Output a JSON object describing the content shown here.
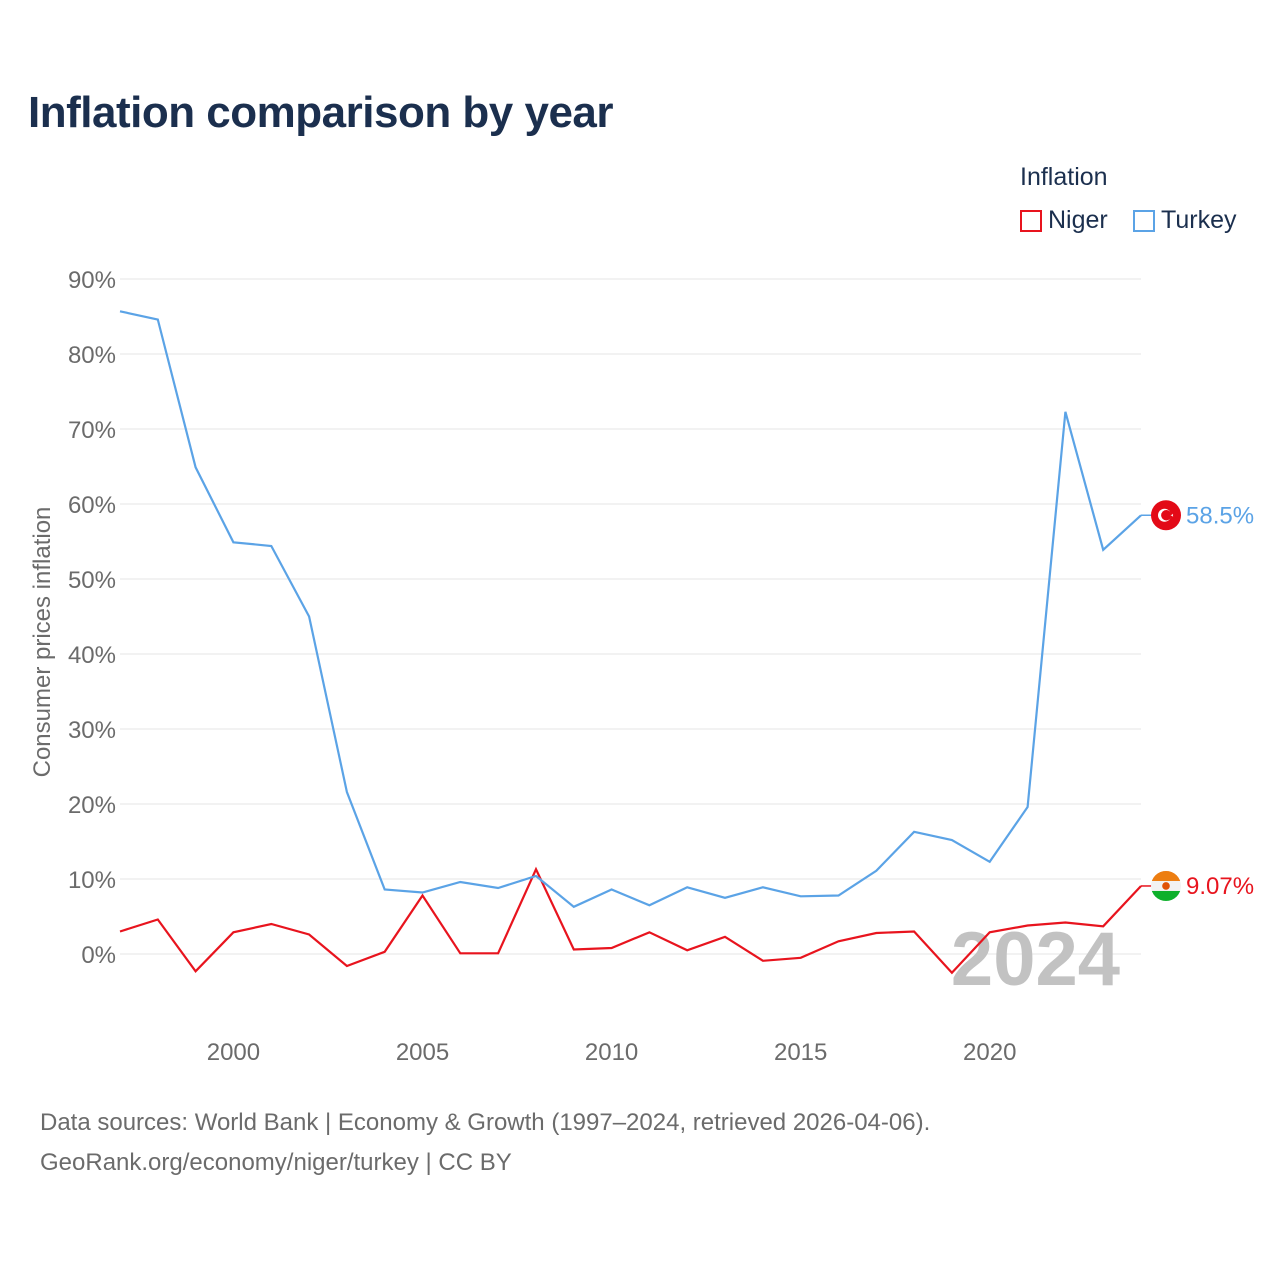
{
  "chart_data": {
    "type": "line",
    "title": "Inflation comparison by year",
    "ylabel": "Consumer prices inflation",
    "xlabel": "",
    "legend_title": "Inflation",
    "x": [
      1997,
      1998,
      1999,
      2000,
      2001,
      2002,
      2003,
      2004,
      2005,
      2006,
      2007,
      2008,
      2009,
      2010,
      2011,
      2012,
      2013,
      2014,
      2015,
      2016,
      2017,
      2018,
      2019,
      2020,
      2021,
      2022,
      2023,
      2024
    ],
    "xlim": [
      1997,
      2024
    ],
    "ylim": [
      -10,
      90
    ],
    "x_ticks": [
      2000,
      2005,
      2010,
      2015,
      2020
    ],
    "y_ticks": [
      0,
      10,
      20,
      30,
      40,
      50,
      60,
      70,
      80,
      90
    ],
    "y_tick_labels": [
      "0%",
      "10%",
      "20%",
      "30%",
      "40%",
      "50%",
      "60%",
      "70%",
      "80%",
      "90%"
    ],
    "grid": true,
    "legend_position": "top-right",
    "series": [
      {
        "name": "Niger",
        "color": "#e8141e",
        "values": [
          3.0,
          4.6,
          -2.3,
          2.9,
          4.0,
          2.6,
          -1.6,
          0.3,
          7.8,
          0.1,
          0.1,
          11.3,
          0.6,
          0.8,
          2.9,
          0.5,
          2.3,
          -0.9,
          -0.5,
          1.7,
          2.8,
          3.0,
          -2.5,
          2.9,
          3.8,
          4.2,
          3.7,
          9.07
        ],
        "end_label": "9.07%",
        "flag_icon": "niger-flag-icon"
      },
      {
        "name": "Turkey",
        "color": "#5ba3e6",
        "values": [
          85.7,
          84.6,
          64.9,
          54.9,
          54.4,
          45.0,
          21.6,
          8.6,
          8.2,
          9.6,
          8.8,
          10.4,
          6.3,
          8.6,
          6.5,
          8.9,
          7.5,
          8.9,
          7.7,
          7.8,
          11.1,
          16.3,
          15.2,
          12.3,
          19.6,
          72.3,
          53.9,
          58.5
        ],
        "end_label": "58.5%",
        "flag_icon": "turkey-flag-icon"
      }
    ],
    "annotations": [
      {
        "text": "2024",
        "position": "bottom-right",
        "color": "#c2c2c2"
      }
    ]
  },
  "source": {
    "line1": "Data sources: World Bank | Economy & Growth (1997–2024, retrieved 2026-04-06).",
    "line2": "GeoRank.org/economy/niger/turkey | CC BY"
  }
}
